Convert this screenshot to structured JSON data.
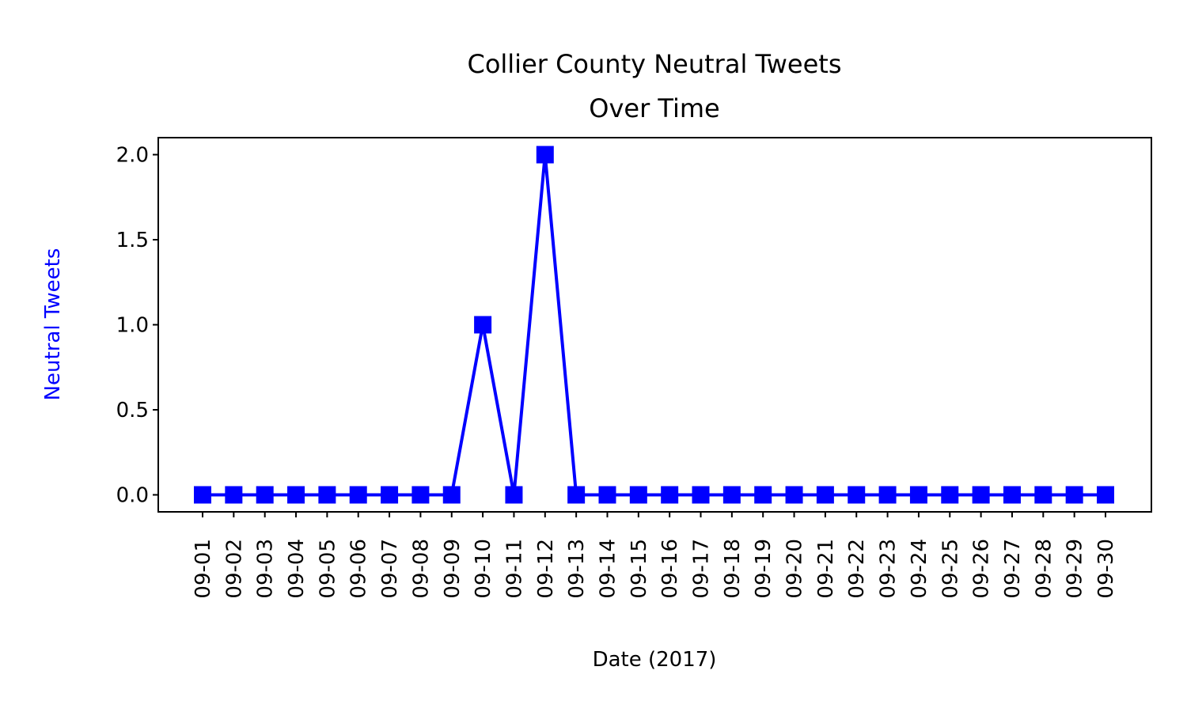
{
  "colors": {
    "series": "#0000ff",
    "axis": "#000000",
    "ylabel": "#0000ff",
    "background": "#ffffff"
  },
  "chart_data": {
    "type": "line",
    "title": [
      "Collier County Neutral Tweets",
      "Over Time"
    ],
    "xlabel": "Date (2017)",
    "ylabel": "Neutral Tweets",
    "marker": "square",
    "grid": false,
    "legend": "none",
    "categories": [
      "09-01",
      "09-02",
      "09-03",
      "09-04",
      "09-05",
      "09-06",
      "09-07",
      "09-08",
      "09-09",
      "09-10",
      "09-11",
      "09-12",
      "09-13",
      "09-14",
      "09-15",
      "09-16",
      "09-17",
      "09-18",
      "09-19",
      "09-20",
      "09-21",
      "09-22",
      "09-23",
      "09-24",
      "09-25",
      "09-26",
      "09-27",
      "09-28",
      "09-29",
      "09-30"
    ],
    "series": [
      {
        "values": [
          0,
          0,
          0,
          0,
          0,
          0,
          0,
          0,
          0,
          1,
          0,
          2,
          0,
          0,
          0,
          0,
          0,
          0,
          0,
          0,
          0,
          0,
          0,
          0,
          0,
          0,
          0,
          0,
          0,
          0
        ]
      }
    ],
    "ylim": [
      -0.1,
      2.1
    ],
    "yticks": [
      0.0,
      0.5,
      1.0,
      1.5,
      2.0
    ],
    "ytick_labels": [
      "0.0",
      "0.5",
      "1.0",
      "1.5",
      "2.0"
    ]
  }
}
